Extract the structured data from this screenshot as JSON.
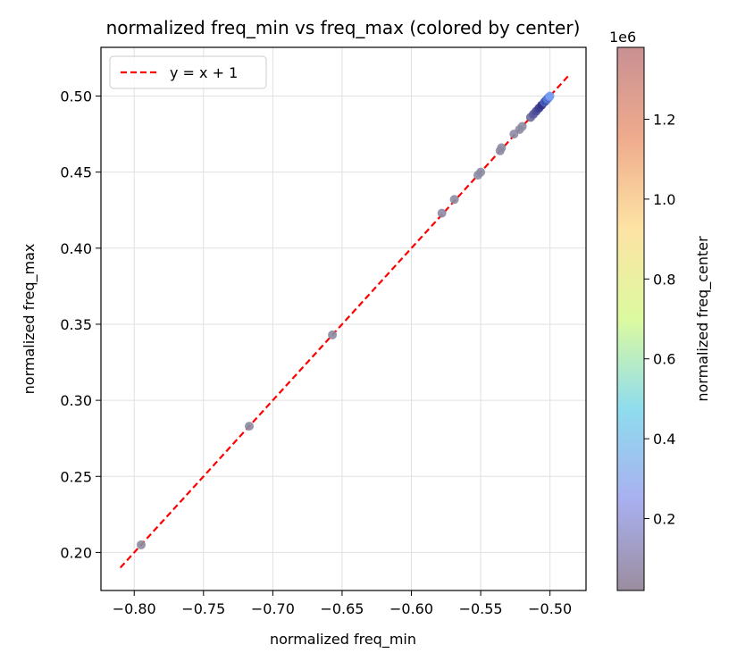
{
  "chart_data": {
    "type": "scatter",
    "title": "normalized freq_min vs freq_max (colored by center)",
    "xlabel": "normalized freq_min",
    "ylabel": "normalized freq_max",
    "xlim": [
      -0.824,
      -0.474
    ],
    "ylim": [
      0.175,
      0.532
    ],
    "xticks": [
      -0.8,
      -0.75,
      -0.7,
      -0.65,
      -0.6,
      -0.55,
      -0.5
    ],
    "xtick_labels": [
      "−0.80",
      "−0.75",
      "−0.70",
      "−0.65",
      "−0.60",
      "−0.55",
      "−0.50"
    ],
    "yticks": [
      0.2,
      0.25,
      0.3,
      0.35,
      0.4,
      0.45,
      0.5
    ],
    "ytick_labels": [
      "0.20",
      "0.25",
      "0.30",
      "0.35",
      "0.40",
      "0.45",
      "0.50"
    ],
    "grid": true,
    "legend": {
      "placement": "top-left",
      "entries": [
        {
          "label": "y = x + 1",
          "color": "#ff0000",
          "style": "dashed"
        }
      ]
    },
    "reference_line": {
      "label": "y = x + 1",
      "x_range": [
        -0.81,
        -0.486
      ],
      "slope": 1,
      "intercept": 1,
      "color": "#ff0000"
    },
    "points": [
      {
        "x": -0.795,
        "y": 0.205
      },
      {
        "x": -0.717,
        "y": 0.283
      },
      {
        "x": -0.657,
        "y": 0.343
      },
      {
        "x": -0.578,
        "y": 0.423
      },
      {
        "x": -0.569,
        "y": 0.432
      },
      {
        "x": -0.552,
        "y": 0.448
      },
      {
        "x": -0.55,
        "y": 0.45
      },
      {
        "x": -0.536,
        "y": 0.464
      },
      {
        "x": -0.535,
        "y": 0.466
      },
      {
        "x": -0.526,
        "y": 0.475
      },
      {
        "x": -0.522,
        "y": 0.478
      },
      {
        "x": -0.52,
        "y": 0.48
      },
      {
        "x": -0.514,
        "y": 0.486
      },
      {
        "x": -0.512,
        "y": 0.488
      },
      {
        "x": -0.51,
        "y": 0.49
      },
      {
        "x": -0.508,
        "y": 0.492
      },
      {
        "x": -0.506,
        "y": 0.494
      },
      {
        "x": -0.504,
        "y": 0.496
      },
      {
        "x": -0.503,
        "y": 0.497
      },
      {
        "x": -0.502,
        "y": 0.498
      },
      {
        "x": -0.501,
        "y": 0.499
      },
      {
        "x": -0.5005,
        "y": 0.4995
      },
      {
        "x": -0.5,
        "y": 0.5
      }
    ],
    "point_colors": [
      "#8b8ca3",
      "#8b8ca3",
      "#8b8ca3",
      "#8b8ca3",
      "#8b8ca3",
      "#8b8ca3",
      "#8b8ca3",
      "#8b8ca3",
      "#8b8ca3",
      "#8b8ca3",
      "#8b8ca3",
      "#8b8ca3",
      "#6a6a98",
      "#5a5aa0",
      "#4a4a9a",
      "#3a3a90",
      "#30308a",
      "#4a60c0",
      "#3a50b0",
      "#5a7ad0",
      "#4a6ad0",
      "#6a8ae0",
      "#7aa0f0"
    ],
    "colorbar": {
      "label": "normalized freq_center",
      "offset_text": "1e6",
      "range": [
        0.02,
        1.38
      ],
      "ticks": [
        0.2,
        0.4,
        0.6,
        0.8,
        1.0,
        1.2
      ],
      "tick_labels": [
        "0.2",
        "0.4",
        "0.6",
        "0.8",
        "1.0",
        "1.2"
      ],
      "colormap": [
        "#9b8d9f",
        "#a9b0f0",
        "#8fdcee",
        "#dcfaa0",
        "#fde3a4",
        "#efab8d",
        "#c99093"
      ]
    }
  }
}
